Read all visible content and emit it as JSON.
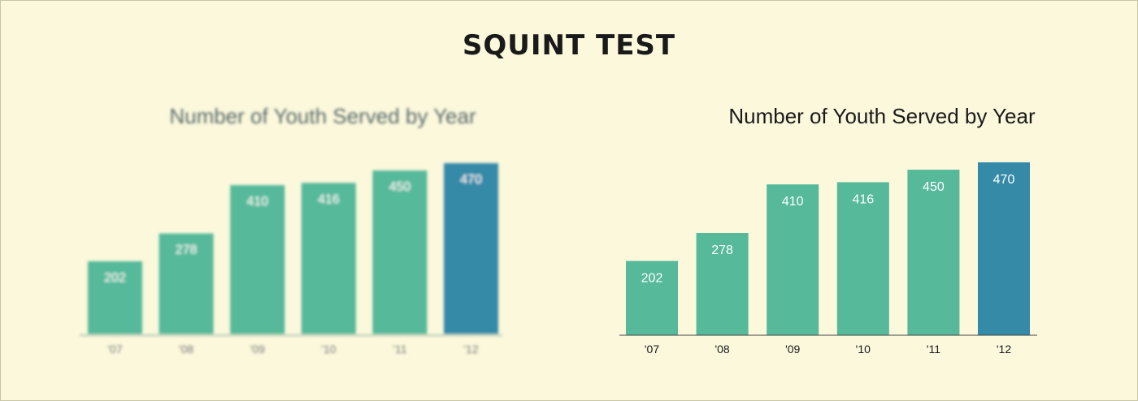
{
  "page_title": "SQUINT TEST",
  "colors": {
    "background": "#fbf8dc",
    "bar": "#55b99a",
    "highlight_bar": "#358aa8"
  },
  "chart_data": [
    {
      "type": "bar",
      "rendering": "blurred",
      "title": "Number of Youth Served by Year",
      "categories": [
        "'07",
        "'08",
        "'09",
        "'10",
        "'11",
        "'12"
      ],
      "values": [
        202,
        278,
        410,
        416,
        450,
        470
      ],
      "data_labels": [
        "202",
        "278",
        "410",
        "416",
        "450",
        "470"
      ],
      "highlight_index": 5,
      "ylim": [
        0,
        470
      ],
      "grid": false,
      "legend": "none"
    },
    {
      "type": "bar",
      "rendering": "sharp",
      "title": "Number of Youth Served by Year",
      "categories": [
        "'07",
        "'08",
        "'09",
        "'10",
        "'11",
        "'12"
      ],
      "values": [
        202,
        278,
        410,
        416,
        450,
        470
      ],
      "data_labels": [
        "202",
        "278",
        "410",
        "416",
        "450",
        "470"
      ],
      "highlight_index": 5,
      "ylim": [
        0,
        470
      ],
      "grid": false,
      "legend": "none"
    }
  ]
}
